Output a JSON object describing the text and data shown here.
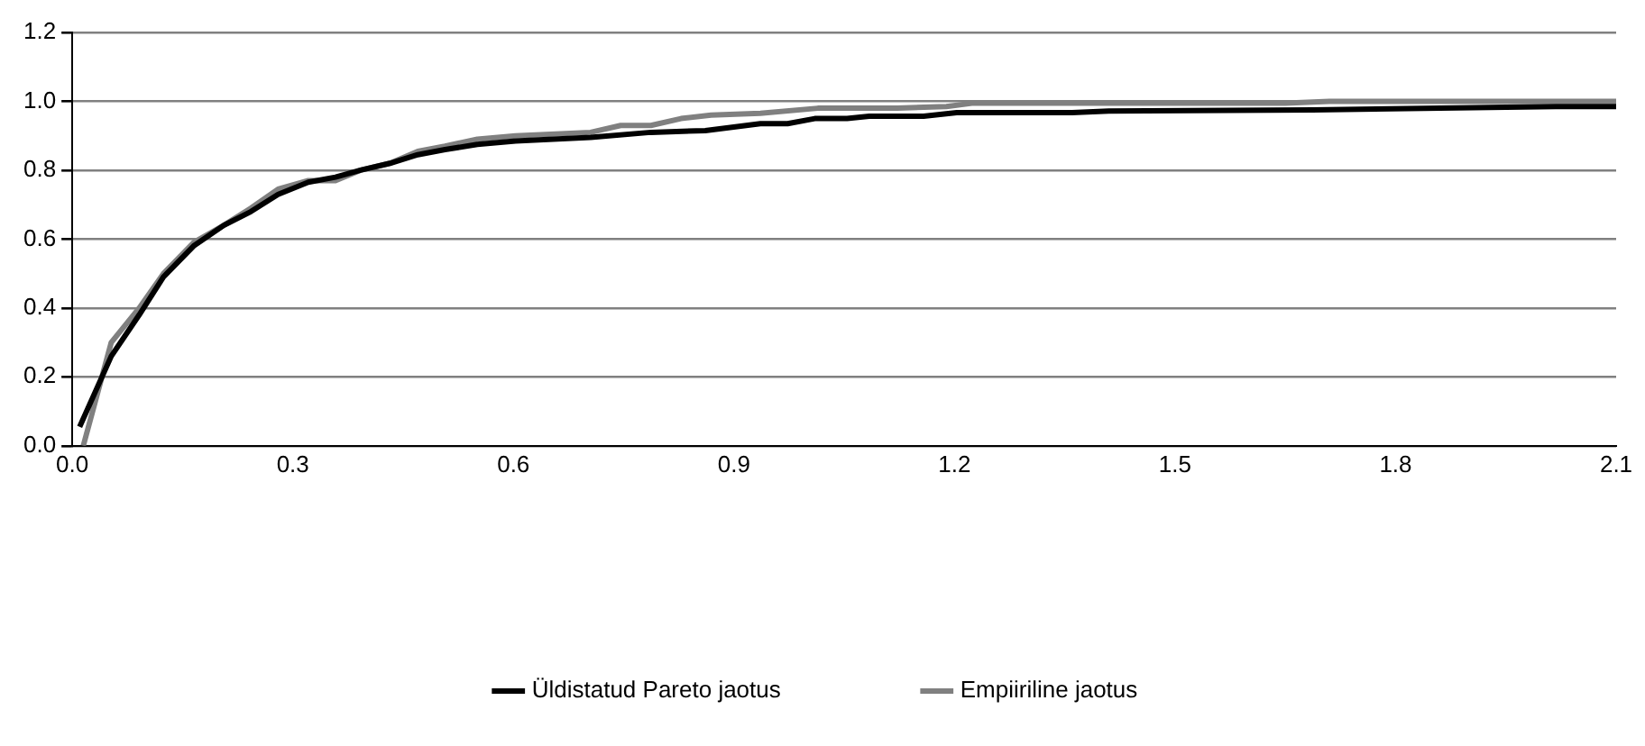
{
  "chart_data": {
    "type": "line",
    "xlim": [
      0,
      2.1
    ],
    "xticks": [
      {
        "value": 0,
        "label": "0.0"
      },
      {
        "value": 0.3,
        "label": "0.3"
      },
      {
        "value": 0.6,
        "label": "0.6"
      },
      {
        "value": 0.9,
        "label": "0.9"
      },
      {
        "value": 1.2,
        "label": "1.2"
      },
      {
        "value": 1.5,
        "label": "1.5"
      },
      {
        "value": 1.8,
        "label": "1.8"
      },
      {
        "value": 2.1,
        "label": "2.1"
      }
    ],
    "ylim": [
      0,
      1.2
    ],
    "yticks": [
      {
        "value": 0,
        "label": "0.0"
      },
      {
        "value": 0.2,
        "label": "0.2"
      },
      {
        "value": 0.4,
        "label": "0.4"
      },
      {
        "value": 0.6,
        "label": "0.6"
      },
      {
        "value": 0.8,
        "label": "0.8"
      },
      {
        "value": 1,
        "label": "1.0"
      },
      {
        "value": 1.2,
        "label": "1.2"
      }
    ],
    "grid": "y",
    "legend": "bottom",
    "marker": "none",
    "line_style": "solid",
    "series": [
      {
        "name": "Üldistatud Pareto jaotus",
        "color": "#000000",
        "x": [
          0.01,
          0.053,
          0.091,
          0.124,
          0.165,
          0.206,
          0.243,
          0.28,
          0.321,
          0.358,
          0.392,
          0.432,
          0.47,
          0.507,
          0.551,
          0.603,
          0.705,
          0.787,
          0.861,
          0.936,
          0.973,
          1.01,
          1.054,
          1.084,
          1.158,
          1.203,
          1.315,
          1.36,
          1.41,
          1.687,
          2.018,
          2.1
        ],
        "values": [
          0.055,
          0.26,
          0.38,
          0.49,
          0.58,
          0.64,
          0.68,
          0.73,
          0.765,
          0.78,
          0.8,
          0.82,
          0.845,
          0.86,
          0.875,
          0.885,
          0.895,
          0.91,
          0.915,
          0.935,
          0.935,
          0.95,
          0.95,
          0.957,
          0.957,
          0.967,
          0.967,
          0.967,
          0.972,
          0.975,
          0.985,
          0.985
        ]
      },
      {
        "name": "Empiiriline jaotus",
        "color": "#808080",
        "x": [
          0.015,
          0.053,
          0.091,
          0.124,
          0.165,
          0.206,
          0.243,
          0.28,
          0.321,
          0.358,
          0.392,
          0.432,
          0.47,
          0.507,
          0.551,
          0.603,
          0.705,
          0.746,
          0.787,
          0.828,
          0.869,
          0.936,
          1.014,
          1.122,
          1.189,
          1.226,
          1.65,
          1.71,
          2.1
        ],
        "values": [
          0,
          0.3,
          0.4,
          0.5,
          0.59,
          0.64,
          0.69,
          0.745,
          0.77,
          0.77,
          0.8,
          0.82,
          0.855,
          0.87,
          0.89,
          0.9,
          0.91,
          0.93,
          0.93,
          0.95,
          0.96,
          0.965,
          0.98,
          0.98,
          0.985,
          0.995,
          0.995,
          1,
          1
        ]
      }
    ]
  }
}
